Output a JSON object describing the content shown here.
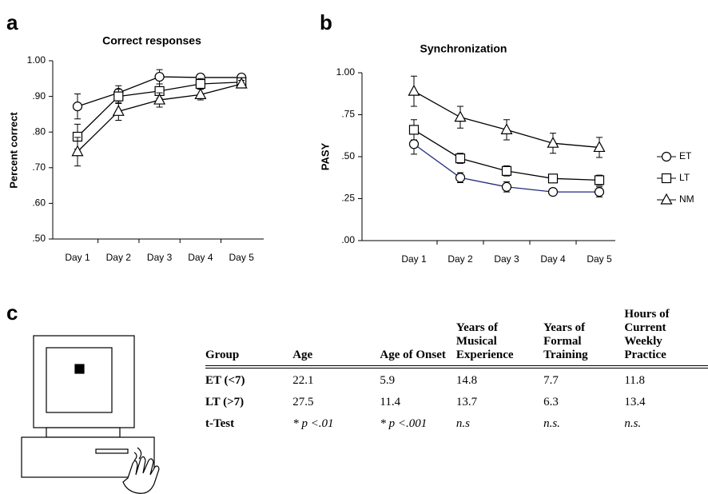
{
  "chart_data": [
    {
      "type": "line",
      "title": "Correct responses",
      "ylabel": "Percent correct",
      "categories": [
        "Day 1",
        "Day 2",
        "Day 3",
        "Day 4",
        "Day 5"
      ],
      "ylim": [
        0.5,
        1.0
      ],
      "yticks": [
        {
          "value": 0.5,
          "label": ".50"
        },
        {
          "value": 0.6,
          "label": ".60"
        },
        {
          "value": 0.7,
          "label": ".70"
        },
        {
          "value": 0.8,
          "label": ".80"
        },
        {
          "value": 0.9,
          "label": ".90"
        },
        {
          "value": 1.0,
          "label": "1.00"
        }
      ],
      "series": [
        {
          "name": "ET",
          "color": "#000000",
          "marker": "circle",
          "values": [
            0.872,
            0.91,
            0.955,
            0.953,
            0.953
          ],
          "errors": [
            0.035,
            0.02,
            0.02,
            0.01,
            0.01
          ]
        },
        {
          "name": "LT",
          "color": "#000000",
          "marker": "square",
          "values": [
            0.787,
            0.9,
            0.915,
            0.935,
            0.94
          ],
          "errors": [
            0.035,
            0.02,
            0.02,
            0.015,
            0.01
          ]
        },
        {
          "name": "NM",
          "color": "#000000",
          "marker": "triangle",
          "values": [
            0.745,
            0.858,
            0.89,
            0.905,
            0.935
          ],
          "errors": [
            0.04,
            0.025,
            0.02,
            0.015,
            0.01
          ]
        }
      ]
    },
    {
      "type": "line",
      "title": "Synchronization",
      "ylabel": "PASY",
      "categories": [
        "Day 1",
        "Day 2",
        "Day 3",
        "Day 4",
        "Day 5"
      ],
      "ylim": [
        0,
        1.0
      ],
      "yticks": [
        {
          "value": 0,
          "label": ".00"
        },
        {
          "value": 0.25,
          "label": ".25"
        },
        {
          "value": 0.5,
          "label": ".50"
        },
        {
          "value": 0.75,
          "label": ".75"
        },
        {
          "value": 1.0,
          "label": "1.00"
        }
      ],
      "legend": "right",
      "series": [
        {
          "name": "ET",
          "color": "#1f2a7a",
          "marker": "circle",
          "values": [
            0.575,
            0.375,
            0.32,
            0.29,
            0.29
          ],
          "errors": [
            0.06,
            0.03,
            0.03,
            0.02,
            0.03
          ]
        },
        {
          "name": "LT",
          "color": "#000000",
          "marker": "square",
          "values": [
            0.66,
            0.49,
            0.415,
            0.37,
            0.36
          ],
          "errors": [
            0.06,
            0.03,
            0.03,
            0.02,
            0.03
          ]
        },
        {
          "name": "NM",
          "color": "#000000",
          "marker": "triangle",
          "values": [
            0.89,
            0.735,
            0.66,
            0.58,
            0.555
          ],
          "errors": [
            0.09,
            0.065,
            0.06,
            0.06,
            0.06
          ]
        }
      ]
    }
  ],
  "panels": [
    "a",
    "b",
    "c"
  ],
  "table": {
    "header": [
      "Group",
      "Age",
      "Age of Onset",
      "Years of Musical Experience",
      "Years of Formal Training",
      "Hours of Current Weekly Practice"
    ],
    "rows": [
      [
        "ET (<7)",
        "22.1",
        "5.9",
        "14.8",
        "7.7",
        "11.8"
      ],
      [
        "LT (>7)",
        "27.5",
        "11.4",
        "13.7",
        "6.3",
        "13.4"
      ],
      [
        "t-Test",
        "* p <.01",
        "* p <.001",
        "n.s",
        "n.s.",
        "n.s."
      ]
    ]
  }
}
